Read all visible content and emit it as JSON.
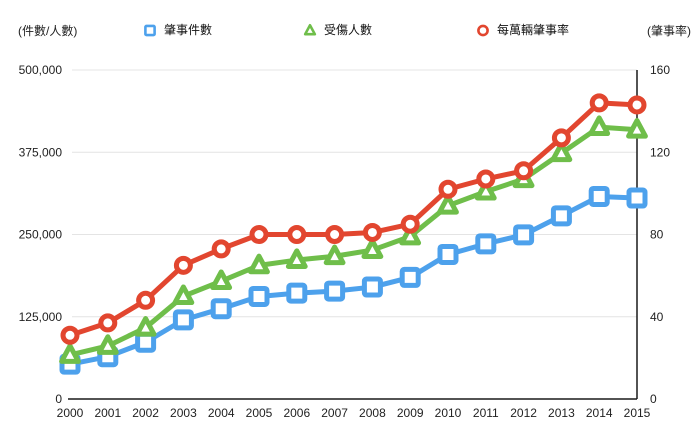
{
  "header": {
    "left_axis_unit": "(件數/人數)",
    "right_axis_unit": "(肇事率)"
  },
  "legend": [
    {
      "label": "肇事件數",
      "marker": "square",
      "color": "#4da1ec"
    },
    {
      "label": "受傷人數",
      "marker": "triangle",
      "color": "#6fbe4a"
    },
    {
      "label": "每萬輛肇事率",
      "marker": "circle",
      "color": "#e2462f"
    }
  ],
  "colors": {
    "blue": "#4da1ec",
    "green": "#6fbe4a",
    "red": "#e2462f",
    "gridline": "#e4e4e4",
    "axis": "#1a1a1a",
    "text": "#222222"
  },
  "chart_data": {
    "type": "line",
    "x": [
      "2000",
      "2001",
      "2002",
      "2003",
      "2004",
      "2005",
      "2006",
      "2007",
      "2008",
      "2009",
      "2010",
      "2011",
      "2012",
      "2013",
      "2014",
      "2015"
    ],
    "left_axis": {
      "unit": "(件數/人數)",
      "range": [
        0,
        500000
      ],
      "tick_values": [
        0,
        125000,
        250000,
        375000,
        500000
      ],
      "tick_labels": [
        "0",
        "125,000",
        "250,000",
        "375,000",
        "500,000"
      ]
    },
    "right_axis": {
      "unit": "(肇事率)",
      "range": [
        0,
        160
      ],
      "tick_values": [
        0,
        40,
        80,
        120,
        160
      ],
      "tick_labels": [
        "0",
        "40",
        "80",
        "120",
        "160"
      ]
    },
    "grid": true,
    "legend_position": "top",
    "series": [
      {
        "name": "肇事件數",
        "axis": "left",
        "marker": "square",
        "color": "#4da1ec",
        "values": [
          52952,
          64264,
          86259,
          120223,
          137221,
          155814,
          160897,
          163971,
          170127,
          184749,
          219651,
          235776,
          249465,
          278388,
          307842,
          305413
        ]
      },
      {
        "name": "受傷人數",
        "axis": "left",
        "marker": "triangle",
        "color": "#6fbe4a",
        "values": [
          66895,
          80612,
          108322,
          156303,
          179108,
          203087,
          211176,
          216927,
          226326,
          246994,
          293764,
          315201,
          334082,
          373568,
          413229,
          409206
        ]
      },
      {
        "name": "每萬輛肇事率",
        "axis": "right",
        "marker": "circle",
        "color": "#e2462f",
        "values": [
          31,
          37,
          48,
          65,
          73,
          80,
          80,
          80,
          81,
          85,
          102,
          107,
          111,
          127,
          144,
          143
        ]
      }
    ]
  }
}
